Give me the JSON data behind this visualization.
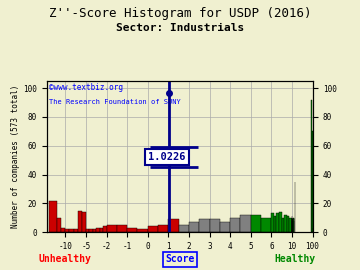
{
  "title": "Z''-Score Histogram for USDP (2016)",
  "subtitle": "Sector: Industrials",
  "xlabel_left": "Unhealthy",
  "xlabel_center": "Score",
  "xlabel_right": "Healthy",
  "ylabel_left": "Number of companies (573 total)",
  "watermark_line1": "©www.textbiz.org",
  "watermark_line2": "The Research Foundation of SUNY",
  "zscore_value": "1.0226",
  "background_color": "#f0f0d0",
  "tick_vals": [
    -10,
    -5,
    -2,
    -1,
    0,
    1,
    2,
    3,
    4,
    5,
    6,
    10,
    100
  ],
  "tick_labels": [
    "-10",
    "-5",
    "-2",
    "-1",
    "0",
    "1",
    "2",
    "3",
    "4",
    "5",
    "6",
    "10",
    "100"
  ],
  "yticks": [
    0,
    20,
    40,
    60,
    80,
    100
  ],
  "ylim": [
    0,
    105
  ],
  "grid_color": "#aaaaaa",
  "bars": [
    [
      -14,
      -12,
      22,
      "#cc0000"
    ],
    [
      -12,
      -11,
      10,
      "#cc0000"
    ],
    [
      -11,
      -10,
      3,
      "#cc0000"
    ],
    [
      -10,
      -9,
      2,
      "#cc0000"
    ],
    [
      -9,
      -8,
      2,
      "#cc0000"
    ],
    [
      -8,
      -7,
      2,
      "#cc0000"
    ],
    [
      -7,
      -6,
      15,
      "#cc0000"
    ],
    [
      -6,
      -5,
      14,
      "#cc0000"
    ],
    [
      -5,
      -4.5,
      2,
      "#cc0000"
    ],
    [
      -4.5,
      -4,
      2,
      "#cc0000"
    ],
    [
      -4,
      -3.5,
      2,
      "#cc0000"
    ],
    [
      -3.5,
      -3,
      3,
      "#cc0000"
    ],
    [
      -3,
      -2.5,
      3,
      "#cc0000"
    ],
    [
      -2.5,
      -2,
      4,
      "#cc0000"
    ],
    [
      -2,
      -1.5,
      5,
      "#cc0000"
    ],
    [
      -1.5,
      -1,
      5,
      "#cc0000"
    ],
    [
      -1,
      -0.5,
      3,
      "#cc0000"
    ],
    [
      -0.5,
      0,
      2,
      "#cc0000"
    ],
    [
      0,
      0.5,
      4,
      "#cc0000"
    ],
    [
      0.5,
      1,
      5,
      "#cc0000"
    ],
    [
      1,
      1.5,
      9,
      "#cc0000"
    ],
    [
      1.5,
      2,
      5,
      "#808080"
    ],
    [
      2,
      2.5,
      7,
      "#808080"
    ],
    [
      2.5,
      3,
      9,
      "#808080"
    ],
    [
      3,
      3.5,
      9,
      "#808080"
    ],
    [
      3.5,
      4,
      7,
      "#808080"
    ],
    [
      4,
      4.5,
      10,
      "#808080"
    ],
    [
      4.5,
      5,
      12,
      "#808080"
    ],
    [
      5,
      5.5,
      12,
      "#008800"
    ],
    [
      5.5,
      6,
      10,
      "#008800"
    ],
    [
      6,
      6.5,
      13,
      "#008800"
    ],
    [
      6.5,
      7,
      11,
      "#008800"
    ],
    [
      7,
      7.5,
      13,
      "#008800"
    ],
    [
      7.5,
      8,
      14,
      "#008800"
    ],
    [
      8,
      8.5,
      10,
      "#008800"
    ],
    [
      8.5,
      9,
      12,
      "#008800"
    ],
    [
      9,
      9.5,
      11,
      "#008800"
    ],
    [
      9.5,
      10,
      10,
      "#008800"
    ],
    [
      10,
      10.5,
      10,
      "#008800"
    ],
    [
      10.5,
      11,
      11,
      "#008800"
    ],
    [
      11,
      11.5,
      9,
      "#008800"
    ],
    [
      11.5,
      12,
      9,
      "#008800"
    ],
    [
      12,
      12.5,
      10,
      "#008800"
    ],
    [
      12.5,
      13,
      8,
      "#008800"
    ],
    [
      13,
      13.5,
      9,
      "#008800"
    ],
    [
      13.5,
      14,
      10,
      "#008800"
    ],
    [
      14,
      14.5,
      8,
      "#008800"
    ],
    [
      14.5,
      15,
      10,
      "#008800"
    ],
    [
      15,
      15.5,
      9,
      "#008800"
    ],
    [
      15.5,
      16,
      8,
      "#008800"
    ],
    [
      16,
      16.5,
      9,
      "#008800"
    ],
    [
      16.5,
      17,
      10,
      "#008800"
    ],
    [
      17,
      17.5,
      10,
      "#008800"
    ],
    [
      17.5,
      18,
      8,
      "#008800"
    ],
    [
      18,
      18.5,
      9,
      "#008800"
    ],
    [
      22,
      24,
      35,
      "#008800"
    ],
    [
      94,
      97,
      92,
      "#008800"
    ],
    [
      97,
      100,
      70,
      "#008800"
    ],
    [
      100,
      102,
      3,
      "#008800"
    ]
  ]
}
